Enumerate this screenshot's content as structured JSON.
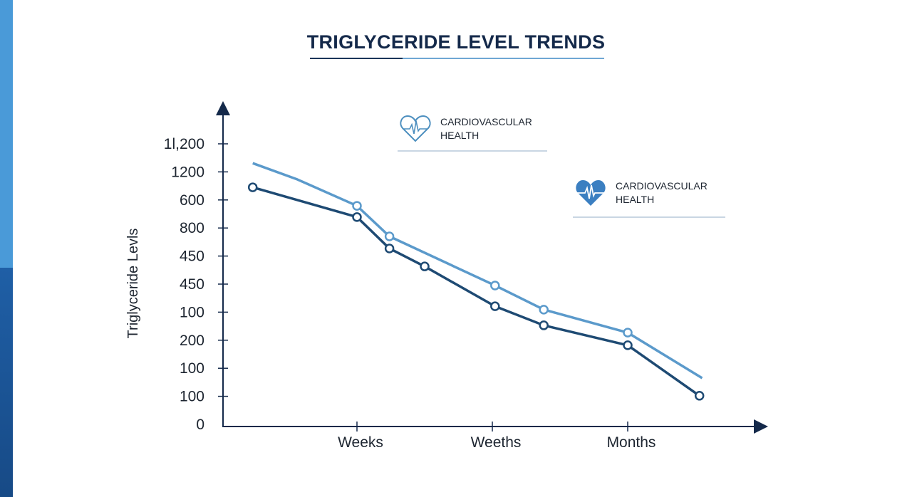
{
  "chart_data": {
    "type": "line",
    "title": "TRIGLYCERIDE LEVEL TRENDS",
    "xlabel": "",
    "ylabel": "Triglyceride Levls",
    "y_tick_labels": [
      "0",
      "100",
      "100",
      "200",
      "100",
      "450",
      "450",
      "800",
      "600",
      "1200",
      "1l,200"
    ],
    "y_scale_note": "tick index units",
    "ylim": [
      0,
      10.5
    ],
    "x_tick_labels": [
      {
        "x": 1,
        "label": "Weeks"
      },
      {
        "x": 2,
        "label": "Weeths"
      },
      {
        "x": 3,
        "label": "Months"
      }
    ],
    "xlim": [
      0,
      4
    ],
    "grid": false,
    "series": [
      {
        "name": "CARDIOVASCULAR HEALTH (light)",
        "color": "#5b9acb",
        "points": [
          [
            0.23,
            9.31,
            false
          ],
          [
            0.56,
            8.73,
            false
          ],
          [
            1.0,
            7.79,
            true
          ],
          [
            1.24,
            6.7,
            true
          ],
          [
            2.02,
            4.95,
            true
          ],
          [
            2.38,
            4.09,
            true
          ],
          [
            3.0,
            3.27,
            true
          ],
          [
            3.55,
            1.65,
            false
          ]
        ]
      },
      {
        "name": "CARDIOVASCULAR HEALTH (dark)",
        "color": "#1e4a73",
        "points": [
          [
            0.23,
            8.45,
            true
          ],
          [
            1.0,
            7.39,
            true
          ],
          [
            1.24,
            6.27,
            true
          ],
          [
            1.5,
            5.63,
            true
          ],
          [
            2.02,
            4.21,
            true
          ],
          [
            2.38,
            3.53,
            true
          ],
          [
            3.0,
            2.82,
            true
          ],
          [
            3.53,
            1.02,
            true
          ]
        ]
      }
    ],
    "legend": [
      {
        "line1": "CARDIOVASCULAR",
        "line2": "HEALTH",
        "icon": "heart-pulse-outline-icon"
      },
      {
        "line1": "CARDIOVASCULAR",
        "line2": "HEALTH",
        "icon": "heart-pulse-filled-icon"
      }
    ]
  }
}
